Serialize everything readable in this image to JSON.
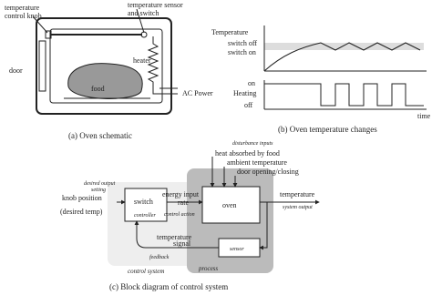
{
  "panel_a": {
    "knob_label": [
      "temperature",
      "control knob"
    ],
    "sensor_label": [
      "temperature sensor",
      "and switch"
    ],
    "door": "door",
    "heater": "heater",
    "food": "food",
    "power": "AC Power",
    "caption": "(a) Oven schematic"
  },
  "panel_b": {
    "temperature": "Temperature",
    "switch_off": "switch off",
    "switch_on": "switch on",
    "on": "on",
    "heating": "Heating",
    "off": "off",
    "time": "time",
    "caption": "(b) Oven temperature changes"
  },
  "panel_c": {
    "setting": [
      "desired output",
      "setting"
    ],
    "knob": [
      "knob position",
      "(desired temp)"
    ],
    "switch": "switch",
    "controller": "controller",
    "energy": [
      "energy input",
      "rate"
    ],
    "control_action": "control action",
    "disturbance": "disturbance inputs",
    "disturbances": [
      "heat absorbed by food",
      "ambient temperature",
      "door opening/closing"
    ],
    "oven": "oven",
    "output": "temperature",
    "system_output": "system output",
    "signal": [
      "temperature",
      "signal"
    ],
    "feedback": "feedback",
    "sensor": "sensor",
    "control_system": "control system",
    "process": "process",
    "caption": "(c) Block diagram of control system"
  }
}
